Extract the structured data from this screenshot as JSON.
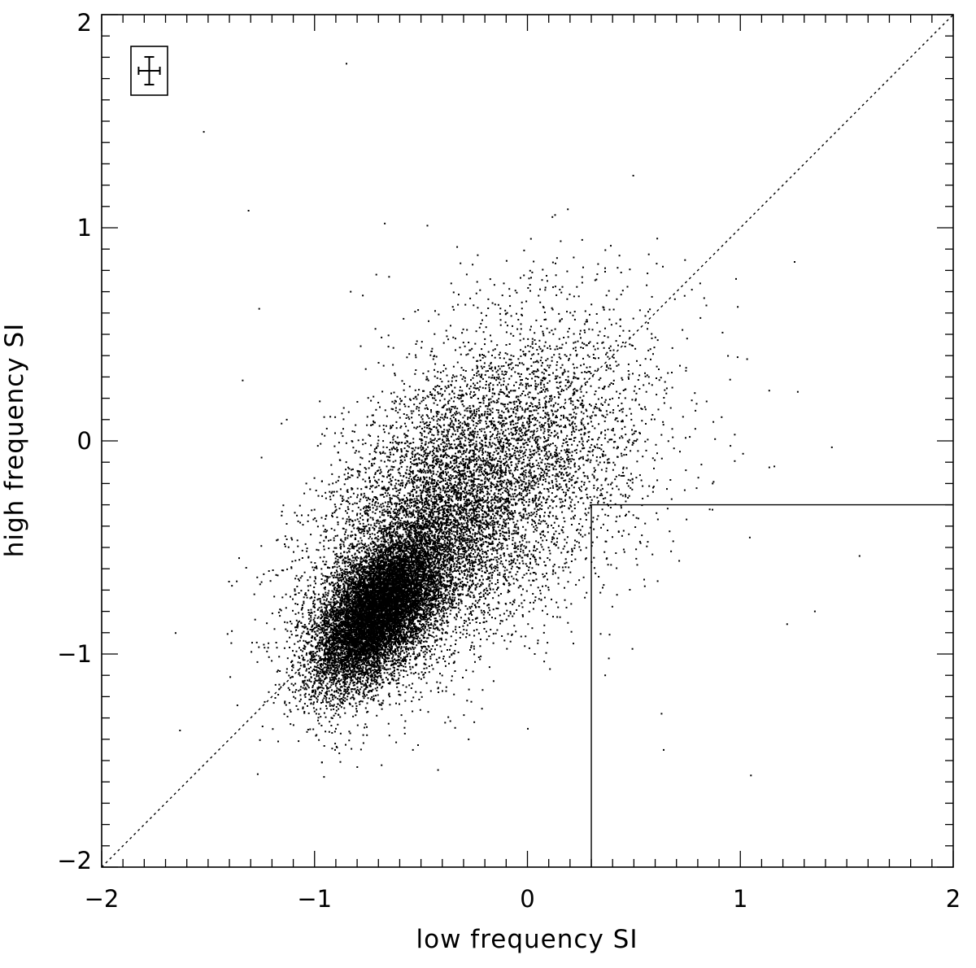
{
  "chart_data": {
    "type": "scatter",
    "title": "",
    "xlabel": "low frequency SI",
    "ylabel": "high frequency SI",
    "xlim": [
      -2,
      2
    ],
    "ylim": [
      -2,
      2
    ],
    "xticks": [
      -2,
      -1,
      0,
      1,
      2
    ],
    "yticks": [
      -2,
      -1,
      0,
      1,
      2
    ],
    "xtick_labels": [
      "−2",
      "−1",
      "0",
      "1",
      "2"
    ],
    "ytick_labels": [
      "−2",
      "−1",
      "0",
      "1",
      "2"
    ],
    "minor_tick_step": 0.1,
    "grid": false,
    "legend": "none",
    "point_color": "#000000",
    "reference_lines": [
      {
        "name": "identity",
        "style": "dotted",
        "x": [
          -2,
          2
        ],
        "y": [
          -2,
          2
        ]
      },
      {
        "name": "selection-box",
        "style": "solid",
        "x": [
          0.3,
          0.3,
          2
        ],
        "y": [
          -2,
          -0.3,
          -0.3
        ]
      }
    ],
    "error_bar_inset": {
      "position": "top-left",
      "x_error": 0.05,
      "y_error": 0.05
    },
    "series": [
      {
        "distribution": "bivariate-normal",
        "count": 10000,
        "center": [
          -0.7,
          -0.8
        ],
        "spread": [
          0.15,
          0.18
        ],
        "correlation": 0.55
      },
      {
        "distribution": "bivariate-normal",
        "count": 6000,
        "center": [
          -0.45,
          -0.45
        ],
        "spread": [
          0.3,
          0.35
        ],
        "correlation": 0.45
      },
      {
        "distribution": "bivariate-normal",
        "count": 3200,
        "center": [
          -0.05,
          -0.05
        ],
        "spread": [
          0.35,
          0.35
        ],
        "correlation": 0.25
      },
      {
        "distribution": "outliers",
        "x": [
          -0.85,
          -1.52,
          -1.31,
          -0.67,
          -0.47,
          -0.33,
          0.13,
          -0.71,
          -0.83,
          -1.26,
          -0.65,
          0.44,
          0.56,
          0.98,
          1.56,
          1.43,
          1.05,
          0.64,
          0.63,
          1.22,
          1.35,
          1.27,
          1.16,
          0.87,
          0.75
        ],
        "y": [
          1.77,
          1.45,
          1.08,
          1.02,
          1.01,
          0.91,
          1.06,
          0.78,
          0.7,
          0.62,
          0.77,
          0.79,
          0.73,
          0.76,
          -0.54,
          -0.03,
          -1.57,
          -1.45,
          -1.28,
          -0.86,
          -0.8,
          0.23,
          -0.12,
          -0.2,
          0.48
        ]
      }
    ]
  }
}
